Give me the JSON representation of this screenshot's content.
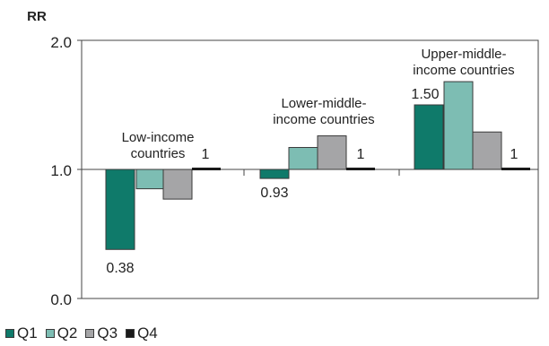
{
  "chart_data": {
    "type": "bar",
    "ylabel": "RR",
    "ylim": [
      0.0,
      2.0
    ],
    "yticks": [
      "0.0",
      "1.0",
      "2.0"
    ],
    "baseline": 1.0,
    "groups": [
      {
        "label_lines": [
          "Low-income",
          "countries"
        ]
      },
      {
        "label_lines": [
          "Lower-middle-",
          "income countries"
        ]
      },
      {
        "label_lines": [
          "Upper-middle-",
          "income countries"
        ]
      }
    ],
    "series": [
      {
        "name": "Q1",
        "color": "#0f7a6a",
        "values": [
          0.38,
          0.93,
          1.5
        ],
        "labels": [
          "0.38",
          "0.93",
          "1.50"
        ]
      },
      {
        "name": "Q2",
        "color": "#7dbdb3",
        "values": [
          0.85,
          1.17,
          1.68
        ],
        "labels": [
          "",
          "",
          ""
        ]
      },
      {
        "name": "Q3",
        "color": "#a5a5a7",
        "values": [
          0.77,
          1.26,
          1.29
        ],
        "labels": [
          "",
          "",
          ""
        ]
      },
      {
        "name": "Q4",
        "color": "#1a1a1a",
        "values": [
          1,
          1,
          1
        ],
        "labels": [
          "1",
          "1",
          "1"
        ]
      }
    ],
    "grid": false,
    "legend_position": "bottom-left"
  }
}
